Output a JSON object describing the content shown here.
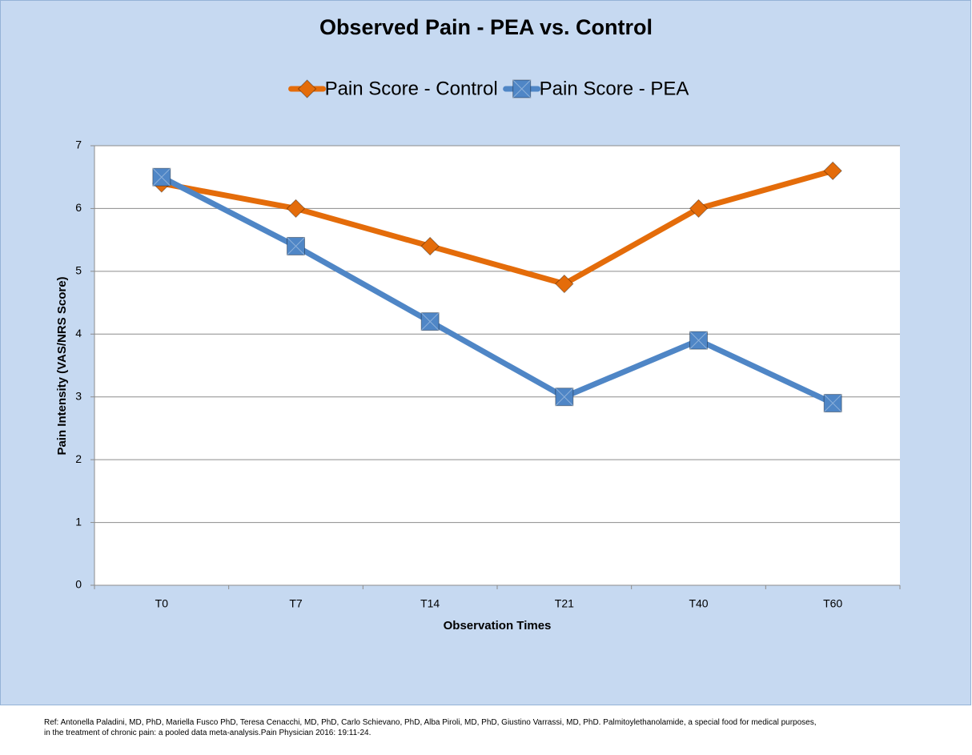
{
  "chart_data": {
    "type": "line",
    "title": "Observed Pain - PEA vs. Control",
    "categories": [
      "T0",
      "T7",
      "T14",
      "T21",
      "T40",
      "T60"
    ],
    "series": [
      {
        "name": "Pain Score - Control",
        "color": "#e46c0a",
        "marker": "diamond",
        "values": [
          6.4,
          6.0,
          5.4,
          4.8,
          6.0,
          6.6
        ]
      },
      {
        "name": "Pain Score - PEA",
        "color": "#4f86c6",
        "marker": "square",
        "values": [
          6.5,
          5.4,
          4.2,
          3.0,
          3.9,
          2.9
        ]
      }
    ],
    "xlabel": "Observation Times",
    "ylabel": "Pain Intensity (VAS/NRS Score)",
    "ylim": [
      0,
      7
    ],
    "yticks": [
      0,
      1,
      2,
      3,
      4,
      5,
      6,
      7
    ],
    "grid": true,
    "legend": "top",
    "footnote": [
      "Ref: Antonella Paladini, MD, PhD, Mariella Fusco PhD, Teresa Cenacchi, MD, PhD, Carlo Schievano, PhD, Alba Piroli, MD, PhD, Giustino Varrassi, MD, PhD. Palmitoylethanolamide, a special food for medical purposes,",
      "in the treatment of chronic pain: a pooled data meta-analysis.Pain Physician 2016: 19:11-24."
    ]
  }
}
